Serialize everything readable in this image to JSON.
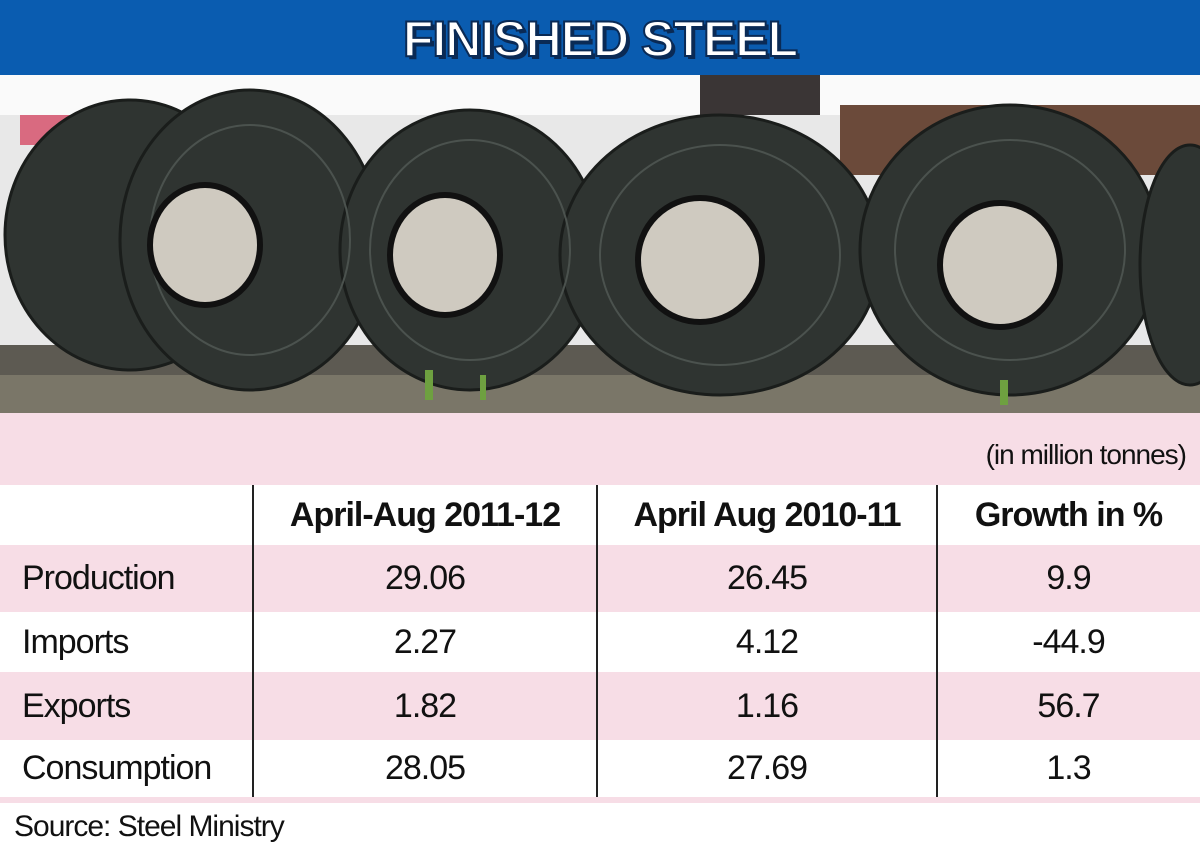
{
  "header": {
    "title": "FINISHED STEEL"
  },
  "unit_note": "(in million tonnes)",
  "table": {
    "columns": [
      "April-Aug 2011-12",
      "April Aug 2010-11",
      "Growth in %"
    ],
    "rows": [
      {
        "label": "Production",
        "values": [
          29.06,
          26.45,
          9.9
        ]
      },
      {
        "label": "Imports",
        "values": [
          2.27,
          4.12,
          -44.9
        ]
      },
      {
        "label": "Exports",
        "values": [
          1.82,
          1.16,
          56.7
        ]
      },
      {
        "label": "Consumption",
        "values": [
          28.05,
          27.69,
          1.3
        ]
      }
    ]
  },
  "source": "Source: Steel Ministry"
}
